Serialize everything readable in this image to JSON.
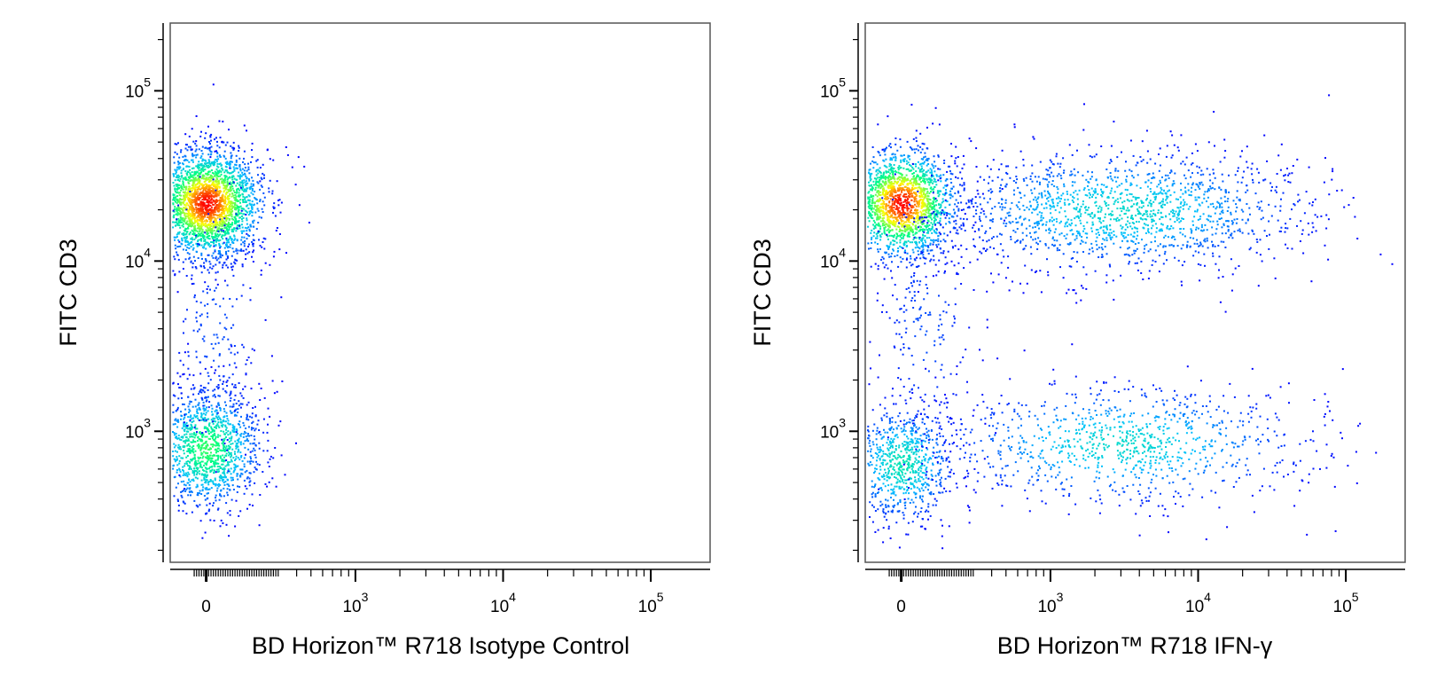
{
  "chart_data": [
    {
      "type": "scatter",
      "title": "",
      "xlabel": "BD Horizon™ R718 Isotype Control",
      "ylabel": "FITC  CD3",
      "x_scale": "biexponential",
      "y_scale": "log",
      "x_ticks": [
        {
          "value": 0,
          "label": "0"
        },
        {
          "value": 1000,
          "label": "10",
          "exp": "3"
        },
        {
          "value": 10000,
          "label": "10",
          "exp": "4"
        },
        {
          "value": 100000,
          "label": "10",
          "exp": "5"
        }
      ],
      "y_ticks": [
        {
          "value": 1000,
          "label": "10",
          "exp": "3"
        },
        {
          "value": 10000,
          "label": "10",
          "exp": "4"
        },
        {
          "value": 100000,
          "label": "10",
          "exp": "5"
        }
      ],
      "xlim": [
        -60,
        180000
      ],
      "ylim": [
        170,
        250000
      ],
      "colormap": [
        "#0000ff",
        "#00bfff",
        "#00ff80",
        "#ffff00",
        "#ff0000"
      ],
      "populations": [
        {
          "name": "",
          "x_center": 0,
          "y_center": 22000,
          "count": 2600,
          "peak_density": 1.0
        },
        {
          "name": "",
          "x_center": 0,
          "y_center": 800,
          "count": 1300,
          "peak_density": 0.55
        },
        {
          "name": "",
          "x_center": 30,
          "y_center": 4000,
          "count": 280,
          "peak_density": 0.1
        }
      ]
    },
    {
      "type": "scatter",
      "title": "",
      "xlabel": "BD Horizon™ R718 IFN-γ",
      "ylabel": "FITC  CD3",
      "x_scale": "biexponential",
      "y_scale": "log",
      "x_ticks": [
        {
          "value": 0,
          "label": "0"
        },
        {
          "value": 1000,
          "label": "10",
          "exp": "3"
        },
        {
          "value": 10000,
          "label": "10",
          "exp": "4"
        },
        {
          "value": 100000,
          "label": "10",
          "exp": "5"
        }
      ],
      "y_ticks": [
        {
          "value": 1000,
          "label": "10",
          "exp": "3"
        },
        {
          "value": 10000,
          "label": "10",
          "exp": "4"
        },
        {
          "value": 100000,
          "label": "10",
          "exp": "5"
        }
      ],
      "xlim": [
        -60,
        180000
      ],
      "ylim": [
        170,
        250000
      ],
      "colormap": [
        "#0000ff",
        "#00bfff",
        "#00ff80",
        "#ffff00",
        "#ff0000"
      ],
      "populations": [
        {
          "name": "",
          "x_center": 0,
          "y_center": 22000,
          "count": 1900,
          "peak_density": 1.0
        },
        {
          "name": "",
          "x_center": 3000,
          "y_center": 20000,
          "count": 1600,
          "peak_density": 0.35
        },
        {
          "name": "",
          "x_center": 0,
          "y_center": 650,
          "count": 800,
          "peak_density": 0.4
        },
        {
          "name": "",
          "x_center": 3000,
          "y_center": 850,
          "count": 1000,
          "peak_density": 0.35
        },
        {
          "name": "",
          "x_center": 100,
          "y_center": 4000,
          "count": 250,
          "peak_density": 0.1
        }
      ]
    }
  ]
}
